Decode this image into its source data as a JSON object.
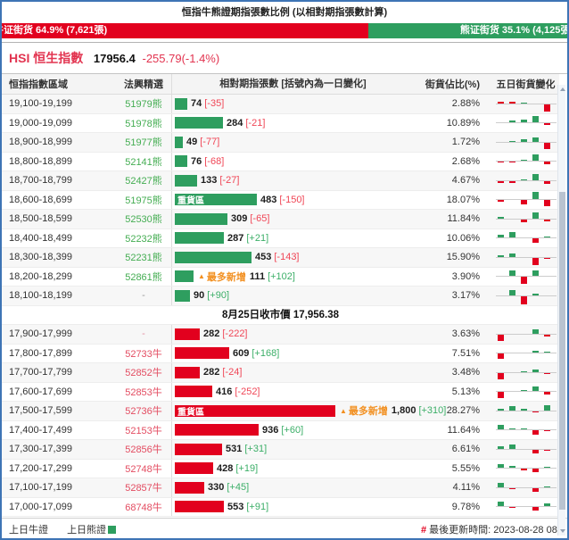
{
  "title": "恒指牛熊證期指張數比例 (以相對期指張數計算)",
  "ratio_bar": {
    "bull_label": "牛证街货 64.9% (7,621張)",
    "bull_pct": 64.9,
    "bear_label": "熊证街货 35.1% (4,125張)",
    "bear_pct": 35.1,
    "bull_color": "#e2001e",
    "bear_color": "#2e9e5f"
  },
  "index": {
    "symbol": "HSI",
    "name": "恒生指數",
    "price": "17956.4",
    "change": "-255.79(-1.4%)"
  },
  "table": {
    "headers": [
      "恒指指數區域",
      "法興精選",
      "相對期指張數 [括號內為一日變化]",
      "街貨佔比(%)",
      "五日街貨變化"
    ],
    "heavy_label": "重貨區",
    "most_added_label": "最多新增",
    "rows": [
      {
        "range": "19,100-19,199",
        "code": "51979熊",
        "ct": "bear",
        "sec": "bear",
        "v": 74,
        "vl": "74",
        "chg": "[-35]",
        "cd": "neg",
        "pct": "2.88%",
        "spark": [
          [
            2,
            "r"
          ],
          [
            2,
            "r"
          ],
          [
            1,
            "g"
          ],
          [
            0,
            ""
          ],
          [
            -8,
            "r"
          ]
        ]
      },
      {
        "range": "19,000-19,099",
        "code": "51978熊",
        "ct": "bear",
        "sec": "bear",
        "v": 284,
        "vl": "284",
        "chg": "[-21]",
        "cd": "neg",
        "pct": "10.89%",
        "spark": [
          [
            0,
            ""
          ],
          [
            2,
            "g"
          ],
          [
            3,
            "g"
          ],
          [
            7,
            "g"
          ],
          [
            -2,
            "r"
          ]
        ]
      },
      {
        "range": "18,900-18,999",
        "code": "51977熊",
        "ct": "bear",
        "sec": "bear",
        "v": 49,
        "vl": "49",
        "chg": "[-77]",
        "cd": "neg",
        "pct": "1.72%",
        "spark": [
          [
            0,
            ""
          ],
          [
            1,
            "g"
          ],
          [
            3,
            "g"
          ],
          [
            5,
            "g"
          ],
          [
            -7,
            "r"
          ]
        ]
      },
      {
        "range": "18,800-18,899",
        "code": "52141熊",
        "ct": "bear",
        "sec": "bear",
        "v": 76,
        "vl": "76",
        "chg": "[-68]",
        "cd": "neg",
        "pct": "2.68%",
        "spark": [
          [
            -1,
            "r"
          ],
          [
            -1,
            "r"
          ],
          [
            1,
            "g"
          ],
          [
            7,
            "g"
          ],
          [
            -3,
            "r"
          ]
        ]
      },
      {
        "range": "18,700-18,799",
        "code": "52427熊",
        "ct": "bear",
        "sec": "bear",
        "v": 133,
        "vl": "133",
        "chg": "[-27]",
        "cd": "neg",
        "pct": "4.67%",
        "spark": [
          [
            -2,
            "r"
          ],
          [
            -2,
            "r"
          ],
          [
            1,
            "g"
          ],
          [
            7,
            "g"
          ],
          [
            -3,
            "r"
          ]
        ]
      },
      {
        "range": "18,600-18,699",
        "code": "51975熊",
        "ct": "bear",
        "sec": "bear",
        "v": 483,
        "vl": "483",
        "chg": "[-150]",
        "cd": "neg",
        "pct": "18.07%",
        "heavy": true,
        "spark": [
          [
            -2,
            "r"
          ],
          [
            0,
            ""
          ],
          [
            -5,
            "r"
          ],
          [
            8,
            "g"
          ],
          [
            -7,
            "r"
          ]
        ]
      },
      {
        "range": "18,500-18,599",
        "code": "52530熊",
        "ct": "bear",
        "sec": "bear",
        "v": 309,
        "vl": "309",
        "chg": "[-65]",
        "cd": "neg",
        "pct": "11.84%",
        "spark": [
          [
            2,
            "g"
          ],
          [
            0,
            ""
          ],
          [
            -3,
            "r"
          ],
          [
            7,
            "g"
          ],
          [
            -2,
            "r"
          ]
        ]
      },
      {
        "range": "18,400-18,499",
        "code": "52232熊",
        "ct": "bear",
        "sec": "bear",
        "v": 287,
        "vl": "287",
        "chg": "[+21]",
        "cd": "pos",
        "pct": "10.06%",
        "spark": [
          [
            3,
            "g"
          ],
          [
            6,
            "g"
          ],
          [
            0,
            ""
          ],
          [
            -5,
            "r"
          ],
          [
            1,
            "g"
          ]
        ]
      },
      {
        "range": "18,300-18,399",
        "code": "52231熊",
        "ct": "bear",
        "sec": "bear",
        "v": 453,
        "vl": "453",
        "chg": "[-143]",
        "cd": "neg",
        "pct": "15.90%",
        "spark": [
          [
            2,
            "g"
          ],
          [
            4,
            "g"
          ],
          [
            0,
            ""
          ],
          [
            -8,
            "r"
          ],
          [
            -1,
            "r"
          ]
        ]
      },
      {
        "range": "18,200-18,299",
        "code": "52861熊",
        "ct": "bear",
        "sec": "bear",
        "v": 111,
        "vl": "111",
        "chg": "[+102]",
        "cd": "pos",
        "pct": "3.90%",
        "most": true,
        "spark": [
          [
            0,
            ""
          ],
          [
            6,
            "g"
          ],
          [
            -8,
            "r"
          ],
          [
            6,
            "g"
          ],
          [
            0,
            ""
          ]
        ]
      },
      {
        "range": "18,100-18,199",
        "code": "-",
        "ct": "muted",
        "sec": "bear",
        "v": 90,
        "vl": "90",
        "chg": "[+90]",
        "cd": "pos",
        "pct": "3.17%",
        "spark": [
          [
            0,
            ""
          ],
          [
            6,
            "g"
          ],
          [
            -9,
            "r"
          ],
          [
            2,
            "g"
          ],
          [
            0,
            ""
          ]
        ]
      },
      {
        "close": "8月25日收市價 17,956.38"
      },
      {
        "range": "17,900-17,999",
        "code": "-",
        "ct": "muted-red",
        "sec": "bull",
        "v": 282,
        "vl": "282",
        "chg": "[-222]",
        "cd": "neg",
        "pct": "3.63%",
        "spark": [
          [
            -7,
            "r"
          ],
          [
            0,
            ""
          ],
          [
            0,
            ""
          ],
          [
            5,
            "g"
          ],
          [
            -2,
            "r"
          ]
        ]
      },
      {
        "range": "17,800-17,899",
        "code": "52733牛",
        "ct": "bull",
        "sec": "bull",
        "v": 609,
        "vl": "609",
        "chg": "[+168]",
        "cd": "pos",
        "pct": "7.51%",
        "spark": [
          [
            -6,
            "r"
          ],
          [
            0,
            ""
          ],
          [
            0,
            ""
          ],
          [
            2,
            "g"
          ],
          [
            1,
            "g"
          ]
        ]
      },
      {
        "range": "17,700-17,799",
        "code": "52852牛",
        "ct": "bull",
        "sec": "bull",
        "v": 282,
        "vl": "282",
        "chg": "[-24]",
        "cd": "neg",
        "pct": "3.48%",
        "spark": [
          [
            -7,
            "r"
          ],
          [
            0,
            ""
          ],
          [
            1,
            "g"
          ],
          [
            3,
            "g"
          ],
          [
            -1,
            "r"
          ]
        ]
      },
      {
        "range": "17,600-17,699",
        "code": "52853牛",
        "ct": "bull",
        "sec": "bull",
        "v": 416,
        "vl": "416",
        "chg": "[-252]",
        "cd": "neg",
        "pct": "5.13%",
        "spark": [
          [
            -7,
            "r"
          ],
          [
            0,
            ""
          ],
          [
            1,
            "g"
          ],
          [
            5,
            "g"
          ],
          [
            -3,
            "r"
          ]
        ]
      },
      {
        "range": "17,500-17,599",
        "code": "52736牛",
        "ct": "bull",
        "sec": "bull",
        "v": 1800,
        "vl": "1,800",
        "chg": "[+310]",
        "cd": "pos",
        "pct": "28.27%",
        "heavy": true,
        "most": true,
        "spark": [
          [
            2,
            "g"
          ],
          [
            5,
            "g"
          ],
          [
            2,
            "g"
          ],
          [
            -1,
            "r"
          ],
          [
            6,
            "g"
          ]
        ]
      },
      {
        "range": "17,400-17,499",
        "code": "52153牛",
        "ct": "bull",
        "sec": "bull",
        "v": 936,
        "vl": "936",
        "chg": "[+60]",
        "cd": "pos",
        "pct": "11.64%",
        "spark": [
          [
            5,
            "g"
          ],
          [
            1,
            "g"
          ],
          [
            1,
            "g"
          ],
          [
            -5,
            "r"
          ],
          [
            -1,
            "r"
          ]
        ]
      },
      {
        "range": "17,300-17,399",
        "code": "52856牛",
        "ct": "bull",
        "sec": "bull",
        "v": 531,
        "vl": "531",
        "chg": "[+31]",
        "cd": "pos",
        "pct": "6.61%",
        "spark": [
          [
            3,
            "g"
          ],
          [
            5,
            "g"
          ],
          [
            0,
            ""
          ],
          [
            -4,
            "r"
          ],
          [
            -1,
            "r"
          ]
        ]
      },
      {
        "range": "17,200-17,299",
        "code": "52748牛",
        "ct": "bull",
        "sec": "bull",
        "v": 428,
        "vl": "428",
        "chg": "[+19]",
        "cd": "pos",
        "pct": "5.55%",
        "spark": [
          [
            4,
            "g"
          ],
          [
            2,
            "g"
          ],
          [
            -2,
            "r"
          ],
          [
            -4,
            "r"
          ],
          [
            1,
            "g"
          ]
        ]
      },
      {
        "range": "17,100-17,199",
        "code": "52857牛",
        "ct": "bull",
        "sec": "bull",
        "v": 330,
        "vl": "330",
        "chg": "[+45]",
        "cd": "pos",
        "pct": "4.11%",
        "spark": [
          [
            5,
            "g"
          ],
          [
            -1,
            "r"
          ],
          [
            0,
            ""
          ],
          [
            -4,
            "r"
          ],
          [
            1,
            "g"
          ]
        ]
      },
      {
        "range": "17,000-17,099",
        "code": "68748牛",
        "ct": "bull",
        "sec": "bull",
        "v": 553,
        "vl": "553",
        "chg": "[+91]",
        "cd": "pos",
        "pct": "9.78%",
        "spark": [
          [
            5,
            "g"
          ],
          [
            -1,
            "r"
          ],
          [
            0,
            ""
          ],
          [
            -4,
            "r"
          ],
          [
            3,
            "g"
          ]
        ]
      }
    ]
  },
  "footer": {
    "legend_bull": "上日牛證",
    "legend_bear": "上日熊證",
    "updated_hash": "#",
    "updated": "最後更新時間: 2023-08-28 08:0"
  },
  "chart_data": {
    "type": "bar",
    "orientation": "horizontal",
    "title": "恒指牛熊證期指張數比例 (以相對期指張數計算)",
    "categories": [
      "19,100-19,199",
      "19,000-19,099",
      "18,900-18,999",
      "18,800-18,899",
      "18,700-18,799",
      "18,600-18,699",
      "18,500-18,599",
      "18,400-18,499",
      "18,300-18,399",
      "18,200-18,299",
      "18,100-18,199",
      "17,900-17,999",
      "17,800-17,899",
      "17,700-17,799",
      "17,600-17,699",
      "17,500-17,599",
      "17,400-17,499",
      "17,300-17,399",
      "17,200-17,299",
      "17,100-17,199",
      "17,000-17,099"
    ],
    "series": [
      {
        "name": "相對期指張數",
        "values": [
          74,
          284,
          49,
          76,
          133,
          483,
          309,
          287,
          453,
          111,
          90,
          282,
          609,
          282,
          416,
          1800,
          936,
          531,
          428,
          330,
          553
        ]
      },
      {
        "name": "一日變化",
        "values": [
          -35,
          -21,
          -77,
          -68,
          -27,
          -150,
          -65,
          21,
          -143,
          102,
          90,
          -222,
          168,
          -24,
          -252,
          310,
          60,
          31,
          19,
          45,
          91
        ]
      },
      {
        "name": "街貨佔比(%)",
        "values": [
          2.88,
          10.89,
          1.72,
          2.68,
          4.67,
          18.07,
          11.84,
          10.06,
          15.9,
          3.9,
          3.17,
          3.63,
          7.51,
          3.48,
          5.13,
          28.27,
          11.64,
          6.61,
          5.55,
          4.11,
          9.78
        ]
      }
    ],
    "annotations": {
      "close_price": "8月25日收市價 17,956.38",
      "bull_outstanding": "牛证街货 64.9% (7,621張)",
      "bear_outstanding": "熊证街货 35.1% (4,125張)",
      "heavy_zone_rows": [
        "18,600-18,699",
        "17,500-17,599"
      ],
      "most_added_rows": [
        "18,200-18,299",
        "17,500-17,599"
      ]
    },
    "legend_position": "bottom"
  }
}
